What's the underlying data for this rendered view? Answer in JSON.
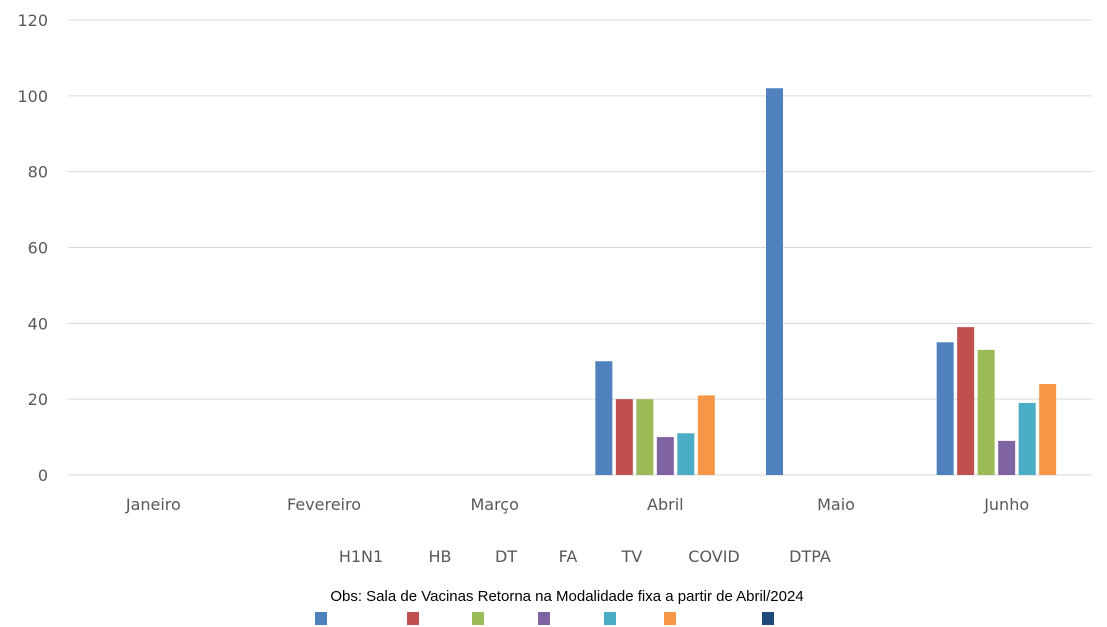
{
  "chart_data": {
    "type": "bar",
    "categories": [
      "Janeiro",
      "Fevereiro",
      "Março",
      "Abril",
      "Maio",
      "Junho"
    ],
    "series": [
      {
        "name": "H1N1",
        "color": "#4F81BD",
        "values": [
          0,
          0,
          0,
          30,
          102,
          35
        ]
      },
      {
        "name": "HB",
        "color": "#C0504D",
        "values": [
          0,
          0,
          0,
          20,
          0,
          39
        ]
      },
      {
        "name": "DT",
        "color": "#9BBB59",
        "values": [
          0,
          0,
          0,
          20,
          0,
          33
        ]
      },
      {
        "name": "FA",
        "color": "#8064A2",
        "values": [
          0,
          0,
          0,
          10,
          0,
          9
        ]
      },
      {
        "name": "TV",
        "color": "#4BACC6",
        "values": [
          0,
          0,
          0,
          11,
          0,
          19
        ]
      },
      {
        "name": "COVID",
        "color": "#F79646",
        "values": [
          0,
          0,
          0,
          21,
          0,
          24
        ]
      },
      {
        "name": "DTPA",
        "color": "#1F497D",
        "values": [
          0,
          0,
          0,
          0,
          0,
          0
        ]
      }
    ],
    "y_ticks": [
      0,
      20,
      40,
      60,
      80,
      100,
      120
    ],
    "ylim": [
      0,
      120
    ],
    "grid": true,
    "legend_position": "bottom",
    "title": "",
    "xlabel": "",
    "ylabel": ""
  },
  "note": "Obs: Sala de Vacinas Retorna na Modalidade fixa a partir de Abril/2024"
}
